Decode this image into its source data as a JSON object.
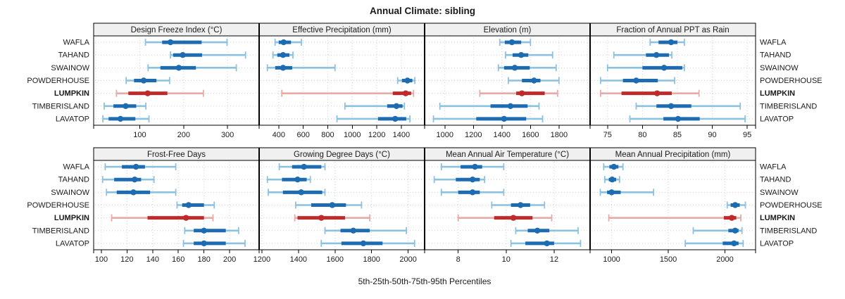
{
  "chart_data": {
    "type": "scatter",
    "subtype": "lattice percentile-range dotplot, 2 rows x 4 columns of panels",
    "title": "Annual Climate: sibling",
    "xlabel": "5th-25th-50th-75th-95th Percentiles",
    "percentiles": [
      5,
      25,
      50,
      75,
      95
    ],
    "categories": [
      "WAFLA",
      "TAHAND",
      "SWAINOW",
      "POWDERHOUSE",
      "LUMPKIN",
      "TIMBERISLAND",
      "LAVATOP"
    ],
    "highlight_category": "LUMPKIN",
    "category_labels_position": "both-sides",
    "legend_position": "none",
    "grid": "dotted",
    "colors": {
      "series_blue": "#1d6cb1",
      "series_blue_light": "#8cc2e0",
      "highlight_red": "#bf2b2b",
      "highlight_red_light": "#e6aba6",
      "strip_bg": "#f0f0f0",
      "panel_bg": "#ffffff",
      "grid": "#d0d0d0",
      "border": "#000000",
      "text": "#1a1a1a"
    },
    "panels": [
      {
        "title": "Design Freeze Index (°C)",
        "xlim": [
          -5,
          372
        ],
        "ticks": [
          100,
          200,
          300
        ],
        "grid": [
          0,
          100,
          200,
          300
        ],
        "values": [
          [
            113,
            151,
            170,
            241,
            299
          ],
          [
            170,
            176,
            198,
            242,
            341
          ],
          [
            119,
            147,
            189,
            228,
            320
          ],
          [
            69,
            87,
            109,
            138,
            168
          ],
          [
            47,
            74,
            118,
            163,
            245
          ],
          [
            19,
            40,
            68,
            92,
            114
          ],
          [
            16,
            29,
            56,
            90,
            121
          ]
        ]
      },
      {
        "title": "Effective Precipitation (mm)",
        "xlim": [
          240,
          1590
        ],
        "ticks": [
          400,
          600,
          800,
          1000,
          1200,
          1400
        ],
        "values": [
          [
            370,
            400,
            440,
            500,
            585
          ],
          [
            353,
            388,
            435,
            487,
            516
          ],
          [
            307,
            371,
            435,
            510,
            859
          ],
          [
            1370,
            1405,
            1450,
            1490,
            1510
          ],
          [
            425,
            1330,
            1435,
            1480,
            1500
          ],
          [
            940,
            1285,
            1360,
            1410,
            1425
          ],
          [
            875,
            1210,
            1350,
            1440,
            1470
          ]
        ]
      },
      {
        "title": "Elevation (m)",
        "xlim": [
          858,
          2018
        ],
        "ticks": [
          1000,
          1200,
          1400,
          1600,
          1800
        ],
        "grid": [
          1000,
          1200,
          1400,
          1600,
          1800,
          2000
        ],
        "values": [
          [
            1385,
            1420,
            1470,
            1535,
            1600
          ],
          [
            1425,
            1475,
            1535,
            1585,
            1755
          ],
          [
            1375,
            1415,
            1490,
            1595,
            1780
          ],
          [
            1445,
            1540,
            1625,
            1670,
            1800
          ],
          [
            1245,
            1500,
            1540,
            1700,
            1790
          ],
          [
            965,
            1320,
            1460,
            1580,
            1660
          ],
          [
            920,
            1220,
            1415,
            1570,
            1685
          ]
        ]
      },
      {
        "title": "Fraction of Annual PPT as Rain",
        "xlim": [
          72.5,
          96.2
        ],
        "ticks": [
          75,
          80,
          85,
          90,
          95
        ],
        "values": [
          [
            81.1,
            82.3,
            84.1,
            85.0,
            86.0
          ],
          [
            75.9,
            80.5,
            82.0,
            83.8,
            84.2
          ],
          [
            75.0,
            80.0,
            83.1,
            85.7,
            86.0
          ],
          [
            74.0,
            77.2,
            79.1,
            82.2,
            84.6
          ],
          [
            74.0,
            77.0,
            82.1,
            84.2,
            88.1
          ],
          [
            79.1,
            82.0,
            84.1,
            87.0,
            94.0
          ],
          [
            78.2,
            83.0,
            85.1,
            88.2,
            94.7
          ]
        ]
      },
      {
        "title": "Frost-Free Days",
        "xlim": [
          94,
          223
        ],
        "ticks": [
          100,
          120,
          140,
          160,
          180,
          200
        ],
        "values": [
          [
            103,
            116,
            127,
            134,
            158
          ],
          [
            101,
            110,
            126,
            131,
            141
          ],
          [
            104,
            112,
            125,
            138,
            158
          ],
          [
            159,
            163,
            168,
            180,
            188
          ],
          [
            108,
            136,
            166,
            180,
            187
          ],
          [
            165,
            172,
            180,
            197,
            207
          ],
          [
            164,
            172,
            180,
            197,
            212
          ]
        ]
      },
      {
        "title": "Growing Degree Days (°C)",
        "xlim": [
          1185,
          2090
        ],
        "ticks": [
          1200,
          1400,
          1600,
          1800,
          2000
        ],
        "values": [
          [
            1295,
            1365,
            1430,
            1525,
            1545
          ],
          [
            1230,
            1310,
            1395,
            1445,
            1465
          ],
          [
            1235,
            1315,
            1415,
            1530,
            1545
          ],
          [
            1385,
            1470,
            1585,
            1660,
            1745
          ],
          [
            1380,
            1395,
            1525,
            1655,
            1790
          ],
          [
            1545,
            1630,
            1700,
            1790,
            1990
          ],
          [
            1525,
            1635,
            1755,
            1860,
            2035
          ]
        ]
      },
      {
        "title": "Mean Annual Air Temperature (°C)",
        "xlim": [
          6.6,
          13.5
        ],
        "ticks": [
          8,
          10,
          12
        ],
        "values": [
          [
            7.3,
            8.1,
            8.7,
            9.0,
            9.9
          ],
          [
            7.0,
            7.9,
            8.6,
            8.9,
            9.1
          ],
          [
            7.3,
            8.0,
            8.6,
            8.9,
            9.9
          ],
          [
            9.4,
            10.2,
            10.6,
            11.0,
            11.6
          ],
          [
            8.0,
            9.5,
            10.3,
            11.1,
            11.9
          ],
          [
            10.4,
            10.9,
            11.3,
            11.8,
            13.0
          ],
          [
            10.2,
            10.8,
            11.7,
            12.0,
            13.1
          ]
        ]
      },
      {
        "title": "Mean Annual Precipitation (mm)",
        "xlim": [
          810,
          2270
        ],
        "ticks": [
          1000,
          1500,
          2000
        ],
        "values": [
          [
            930,
            980,
            1020,
            1060,
            1100
          ],
          [
            940,
            975,
            1005,
            1040,
            1070
          ],
          [
            900,
            960,
            1000,
            1080,
            1370
          ],
          [
            2020,
            2050,
            2090,
            2130,
            2180
          ],
          [
            975,
            1990,
            2060,
            2100,
            2140
          ],
          [
            1720,
            2030,
            2090,
            2120,
            2150
          ],
          [
            1650,
            1980,
            2080,
            2120,
            2160
          ]
        ]
      }
    ]
  }
}
